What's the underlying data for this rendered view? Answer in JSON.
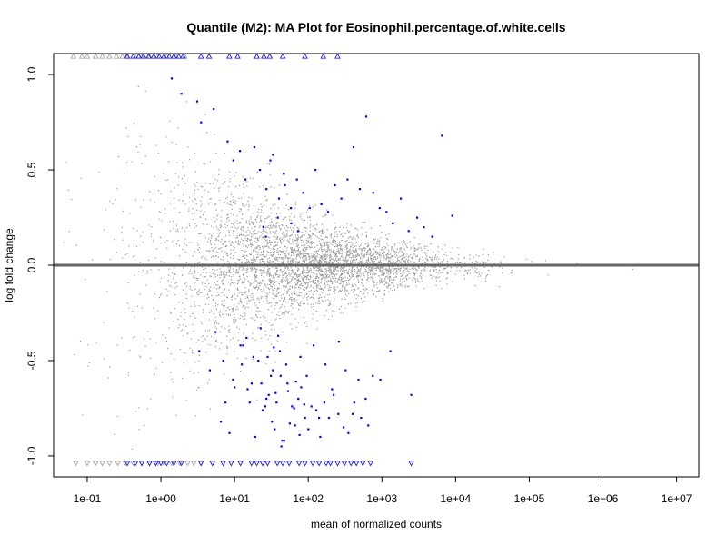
{
  "chart_data": {
    "type": "scatter",
    "title": "Quantile (M2): MA Plot for Eosinophil.percentage.of.white.cells",
    "xlabel": "mean of normalized counts",
    "ylabel": "log fold change",
    "x_scale": "log10",
    "xlim": [
      0.035,
      20000000
    ],
    "ylim": [
      -1.11,
      1.11
    ],
    "x_ticks": [
      0.1,
      1,
      10,
      100,
      1000,
      10000,
      100000,
      1000000,
      10000000
    ],
    "x_tick_labels": [
      "1e-01",
      "1e+00",
      "1e+01",
      "1e+02",
      "1e+03",
      "1e+04",
      "1e+05",
      "1e+06",
      "1e+07"
    ],
    "y_ticks": [
      -1.0,
      -0.5,
      0.0,
      0.5,
      1.0
    ],
    "y_tick_labels": [
      "-1.0",
      "-0.5",
      "0.0",
      "0.5",
      "1.0"
    ],
    "hline_y": 0,
    "grid": false,
    "colors": {
      "nonsignificant": "#999999",
      "significant": "#0000ff",
      "hline": "#666666",
      "box": "#000000"
    },
    "clipped_upper": {
      "y": 1.0,
      "marker": "triangle-up",
      "gray_x": [
        0.065,
        0.085,
        0.1,
        0.13,
        0.16,
        0.2,
        0.25,
        0.3,
        0.34,
        0.45,
        0.55,
        0.7,
        0.9,
        1.2,
        1.6,
        2.1
      ],
      "blue_x": [
        0.35,
        0.42,
        0.5,
        0.58,
        0.68,
        0.8,
        0.95,
        1.1,
        1.3,
        1.5,
        1.75,
        2.0,
        3.5,
        4.5,
        8.5,
        11,
        20,
        25,
        30,
        45,
        90,
        160,
        250
      ]
    },
    "clipped_lower": {
      "y": -1.0,
      "marker": "triangle-down",
      "gray_x": [
        0.07,
        0.1,
        0.13,
        0.16,
        0.2,
        0.26,
        0.33,
        0.42,
        0.55,
        0.7,
        0.9,
        1.1,
        1.4,
        1.8,
        2.3,
        2.8,
        3.5
      ],
      "blue_x": [
        0.35,
        0.45,
        0.55,
        0.7,
        0.85,
        1.0,
        1.2,
        1.5,
        1.9,
        3.5,
        5,
        7,
        9,
        12,
        17,
        20,
        24,
        28,
        38,
        45,
        55,
        75,
        90,
        115,
        140,
        175,
        200,
        250,
        310,
        380,
        450,
        550,
        700,
        2500
      ]
    },
    "series": [
      {
        "name": "",
        "role": "significant",
        "x": [
          1.4,
          1.9,
          3.1,
          3.5,
          5.2,
          8.0,
          9.6,
          11.8,
          14.0,
          18.5,
          22.0,
          27.0,
          33.0,
          40.0,
          48.0,
          58.0,
          70.0,
          85.0,
          104.0,
          125.0,
          150.0,
          185.0,
          230.0,
          280.0,
          340.0,
          410.0,
          500.0,
          610.0,
          760.0,
          930.0,
          1150.0,
          1400.0,
          1800.0,
          2300.0,
          3000.0,
          3700.0,
          4800.0,
          6500.0,
          9000.0,
          3.3,
          4.6,
          7.0,
          9.5,
          12.0,
          15.0,
          21.0,
          27.0,
          33.0,
          41.0,
          52.0,
          64.0,
          78.0,
          95.0,
          118.0,
          140.0,
          170.0,
          210.0,
          260.0,
          320.0,
          400.0,
          480.0,
          600.0,
          750.0,
          950.0,
          1300.0,
          2500.0,
          5.5,
          6.5,
          7.5,
          8.5,
          10.0,
          12.5,
          16.0,
          19.0,
          23.0,
          26.0,
          29.0,
          31.0,
          35.0,
          37.0,
          42.0,
          47.0,
          53.0,
          60.0,
          66.0,
          73.0,
          80.0,
          90.0,
          100.0,
          110.0,
          128.0,
          145.0,
          165.0,
          190.0,
          220.0,
          255.0,
          300.0,
          350.0,
          420.0,
          520.0,
          650.0,
          13.0,
          17.0,
          24.0,
          28.0,
          32.0,
          36.0,
          44.0,
          50.0,
          56.0,
          68.0,
          76.0,
          88.0,
          24.5,
          30.5,
          38.5,
          46.5,
          58.5,
          72.5,
          14.5,
          18.0,
          22.5,
          34.0,
          43.0,
          26.5,
          39.0
        ],
        "y": [
          0.98,
          0.9,
          0.86,
          0.75,
          0.82,
          0.65,
          0.55,
          0.6,
          0.45,
          0.62,
          0.5,
          0.4,
          0.58,
          0.35,
          0.42,
          0.3,
          0.45,
          0.38,
          0.3,
          0.5,
          0.32,
          0.28,
          0.42,
          0.35,
          0.45,
          0.62,
          0.4,
          0.78,
          0.38,
          0.3,
          0.28,
          0.22,
          0.35,
          0.18,
          0.25,
          0.2,
          0.15,
          0.68,
          0.26,
          -0.45,
          -0.55,
          -0.5,
          -0.6,
          -0.42,
          -0.65,
          -0.5,
          -0.7,
          -0.55,
          -0.45,
          -0.62,
          -0.75,
          -0.48,
          -0.58,
          -0.42,
          -0.8,
          -0.52,
          -0.65,
          -0.4,
          -0.55,
          -0.78,
          -0.6,
          -0.7,
          -0.58,
          -0.6,
          -0.45,
          -0.68,
          -0.35,
          -0.82,
          -0.72,
          -0.88,
          -0.64,
          -0.52,
          -0.72,
          -0.9,
          -0.62,
          -0.74,
          -0.68,
          -0.58,
          -0.86,
          -0.72,
          -0.58,
          -0.92,
          -0.66,
          -0.74,
          -0.84,
          -0.7,
          -0.64,
          -0.8,
          -0.86,
          -0.74,
          -0.76,
          -0.9,
          -0.72,
          -0.8,
          -0.68,
          -0.78,
          -0.85,
          -0.88,
          -0.72,
          -0.8,
          -0.84,
          -0.42,
          -0.62,
          -0.76,
          -0.48,
          -0.82,
          -0.67,
          -0.92,
          -0.52,
          -0.83,
          -0.61,
          -0.89,
          -0.73,
          0.2,
          0.55,
          0.25,
          0.48,
          0.22,
          0.18,
          -0.38,
          -0.48,
          -0.33,
          -0.43,
          -0.95,
          0.15,
          -0.37
        ]
      }
    ]
  }
}
